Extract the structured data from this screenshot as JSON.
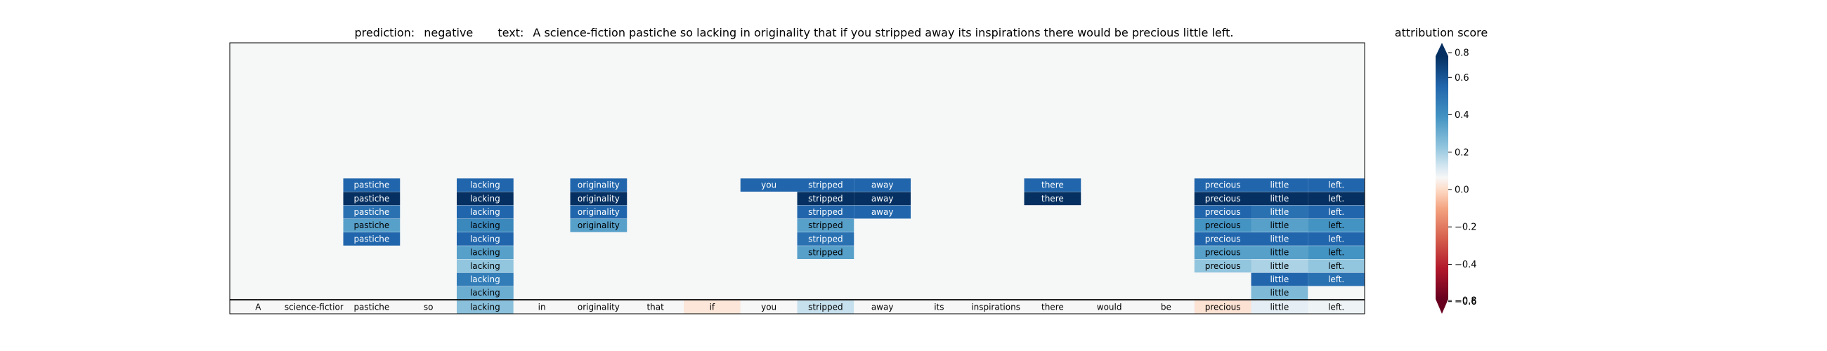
{
  "title": {
    "prediction_label": "prediction:",
    "prediction_value": "negative",
    "text_label": "text:",
    "text_value": "A science-fiction pastiche so lacking in originality that if you stripped away its inspirations there would be precious little left."
  },
  "colorbar": {
    "title": "attribution score",
    "ticks": [
      "0.8",
      "0.6",
      "0.4",
      "0.2",
      "0.0",
      "−0.2",
      "−0.4",
      "−0.6",
      "−0.8"
    ]
  },
  "chart_data": {
    "type": "heatmap",
    "color_scale": "RdBu",
    "vmin": -0.8,
    "vmax": 0.8,
    "tokens": [
      "A",
      "science-fiction",
      "pastiche",
      "so",
      "lacking",
      "in",
      "originality",
      "that",
      "if",
      "you",
      "stripped",
      "away",
      "its",
      "inspirations",
      "there",
      "would",
      "be",
      "precious",
      "little",
      "left."
    ],
    "base_row_scores": [
      0.0,
      0.0,
      0.0,
      0.0,
      0.22,
      0.0,
      0.0,
      0.0,
      -0.05,
      0.0,
      0.1,
      0.0,
      0.0,
      0.0,
      0.0,
      0.0,
      0.0,
      -0.06,
      0.04,
      0.02
    ],
    "rows": [
      [
        [
          2,
          0.6
        ],
        [
          4,
          0.6
        ],
        [
          6,
          0.6
        ],
        [
          9,
          0.6
        ],
        [
          10,
          0.6
        ],
        [
          11,
          0.6
        ],
        [
          14,
          0.6
        ],
        [
          17,
          0.6
        ],
        [
          18,
          0.6
        ],
        [
          19,
          0.6
        ]
      ],
      [
        [
          2,
          0.8
        ],
        [
          4,
          0.8
        ],
        [
          6,
          0.8
        ],
        [
          10,
          0.8
        ],
        [
          11,
          0.8
        ],
        [
          14,
          0.8
        ],
        [
          17,
          0.8
        ],
        [
          18,
          0.8
        ],
        [
          19,
          0.8
        ]
      ],
      [
        [
          2,
          0.55
        ],
        [
          4,
          0.6
        ],
        [
          6,
          0.6
        ],
        [
          10,
          0.6
        ],
        [
          11,
          0.6
        ],
        [
          17,
          0.6
        ],
        [
          18,
          0.55
        ],
        [
          19,
          0.6
        ]
      ],
      [
        [
          2,
          0.35
        ],
        [
          4,
          0.45
        ],
        [
          6,
          0.35
        ],
        [
          10,
          0.35
        ],
        [
          17,
          0.4
        ],
        [
          18,
          0.35
        ],
        [
          19,
          0.4
        ]
      ],
      [
        [
          2,
          0.6
        ],
        [
          4,
          0.6
        ],
        [
          10,
          0.55
        ],
        [
          17,
          0.6
        ],
        [
          18,
          0.6
        ],
        [
          19,
          0.6
        ]
      ],
      [
        [
          4,
          0.35
        ],
        [
          10,
          0.35
        ],
        [
          17,
          0.35
        ],
        [
          18,
          0.35
        ],
        [
          19,
          0.4
        ]
      ],
      [
        [
          4,
          0.2
        ],
        [
          17,
          0.2
        ],
        [
          18,
          0.15
        ],
        [
          19,
          0.2
        ]
      ],
      [
        [
          4,
          0.5
        ],
        [
          18,
          0.6
        ],
        [
          19,
          0.55
        ]
      ],
      [
        [
          4,
          0.3
        ],
        [
          18,
          0.25
        ]
      ]
    ]
  }
}
